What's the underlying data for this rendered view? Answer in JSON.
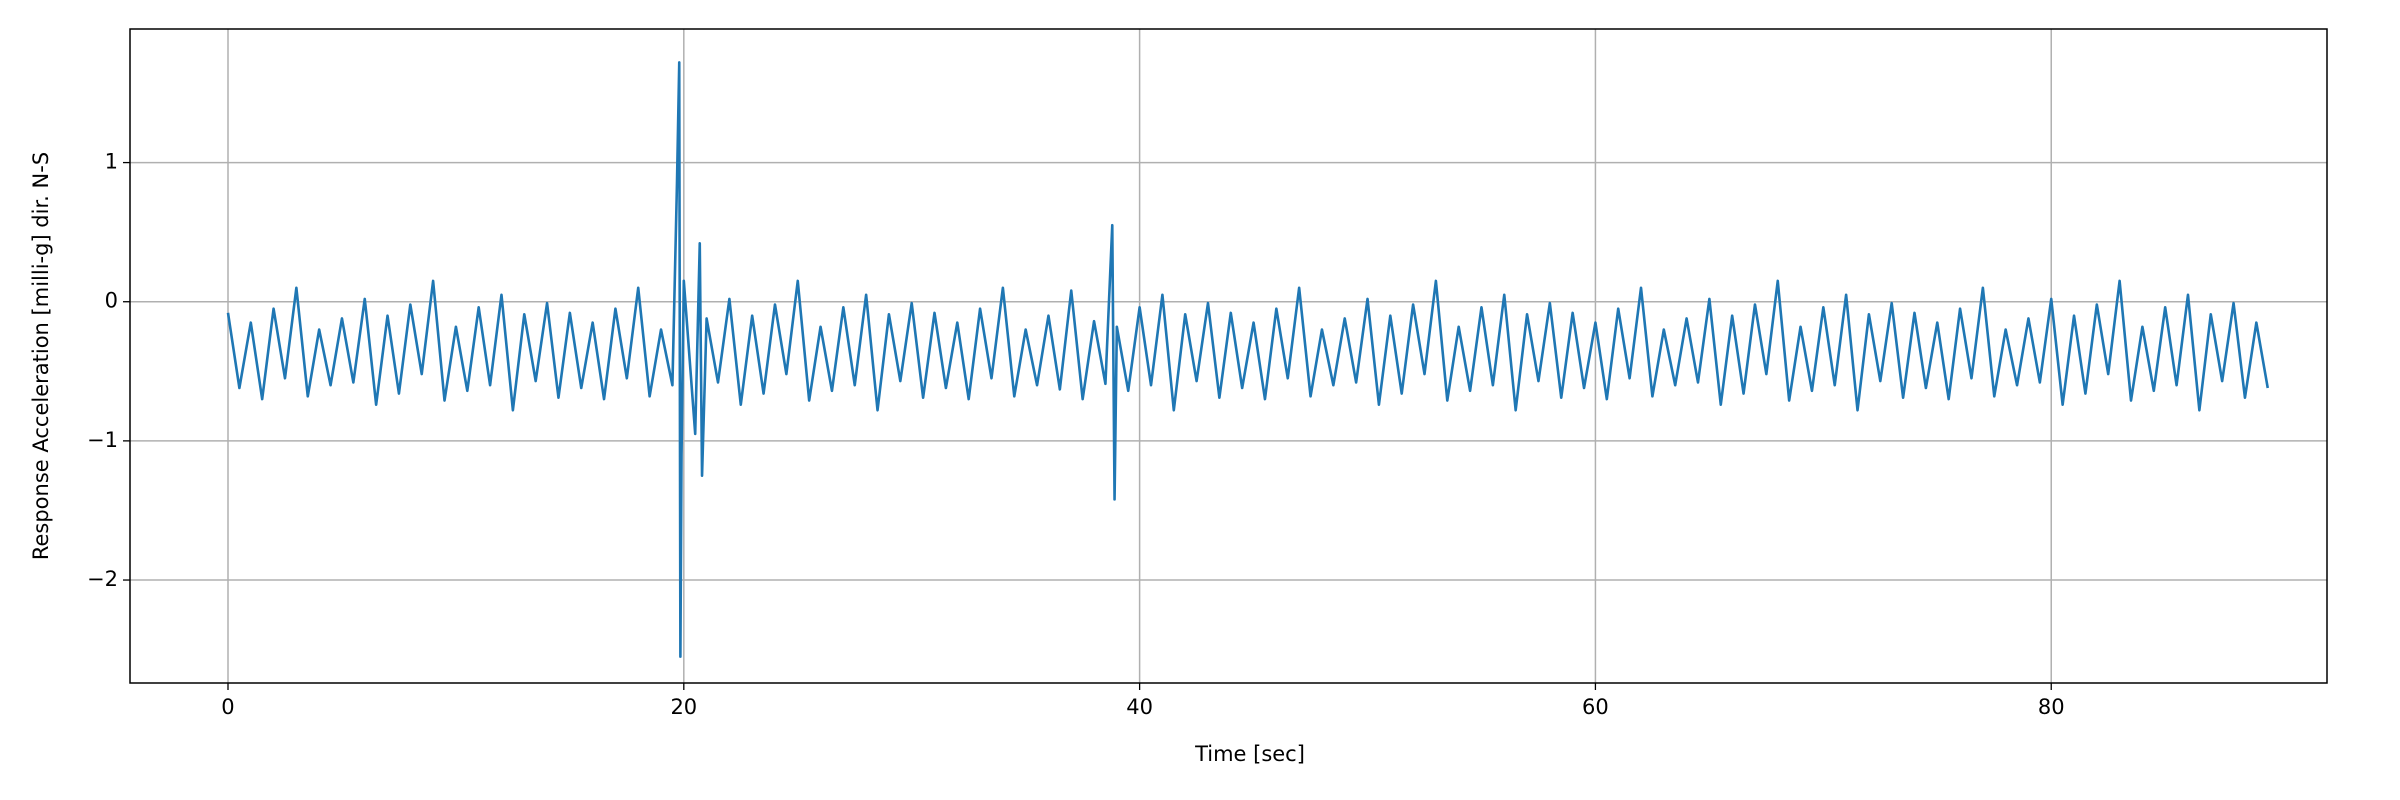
{
  "chart_data": {
    "type": "line",
    "xlabel": "Time [sec]",
    "ylabel": "Response Acceleration [milli-g] dir. N-S",
    "color": "#1f77b4",
    "grid": true,
    "xlim": [
      -4.3,
      92.1
    ],
    "ylim": [
      -2.74,
      1.96
    ],
    "xticks": [
      0,
      20,
      40,
      60,
      80
    ],
    "yticks": [
      {
        "value": -2,
        "label": "−2"
      },
      {
        "value": -1,
        "label": "−1"
      },
      0,
      1
    ],
    "x": [
      0,
      0.5,
      1,
      1.5,
      2,
      2.5,
      3,
      3.5,
      4,
      4.5,
      5,
      5.5,
      6,
      6.5,
      7,
      7.5,
      8,
      8.5,
      9,
      9.5,
      10,
      10.5,
      11,
      11.5,
      12,
      12.5,
      13,
      13.5,
      14,
      14.5,
      15,
      15.5,
      16,
      16.5,
      17,
      17.5,
      18,
      18.5,
      19,
      19.5,
      19.7,
      19.8,
      19.85,
      19.9,
      20,
      20.5,
      20.7,
      20.8,
      21,
      21.5,
      22,
      22.5,
      23,
      23.5,
      24,
      24.5,
      25,
      25.5,
      26,
      26.5,
      27,
      27.5,
      28,
      28.5,
      29,
      29.5,
      30,
      30.5,
      31,
      31.5,
      32,
      32.5,
      33,
      33.5,
      34,
      34.5,
      35,
      35.5,
      36,
      36.5,
      37,
      37.5,
      38,
      38.5,
      38.8,
      38.9,
      39,
      39.5,
      40,
      40.5,
      41,
      41.5,
      42,
      42.5,
      43,
      43.5,
      44,
      44.5,
      45,
      45.5,
      46,
      46.5,
      47,
      47.5,
      48,
      48.5,
      49,
      49.5,
      50,
      50.5,
      51,
      51.5,
      52,
      52.5,
      53,
      53.5,
      54,
      54.5,
      55,
      55.5,
      56,
      56.5,
      57,
      57.5,
      58,
      58.5,
      59,
      59.5,
      60,
      60.5,
      61,
      61.5,
      62,
      62.5,
      63,
      63.5,
      64,
      64.5,
      65,
      65.5,
      66,
      66.5,
      67,
      67.5,
      68,
      68.5,
      69,
      69.5,
      70,
      70.5,
      71,
      71.5,
      72,
      72.5,
      73,
      73.5,
      74,
      74.5,
      75,
      75.5,
      76,
      76.5,
      77,
      77.5,
      78,
      78.5,
      79,
      79.5,
      80,
      80.5,
      81,
      81.5,
      82,
      82.5,
      83,
      83.5,
      84,
      84.5,
      85,
      85.5,
      86,
      86.5,
      87,
      87.5,
      88,
      88.5,
      89,
      89.5
    ],
    "values": [
      -0.08,
      -0.62,
      -0.15,
      -0.7,
      -0.05,
      -0.55,
      0.1,
      -0.68,
      -0.2,
      -0.6,
      -0.12,
      -0.58,
      0.02,
      -0.74,
      -0.1,
      -0.66,
      -0.02,
      -0.52,
      0.15,
      -0.71,
      -0.18,
      -0.64,
      -0.04,
      -0.6,
      0.05,
      -0.78,
      -0.09,
      -0.57,
      -0.01,
      -0.69,
      -0.08,
      -0.62,
      -0.15,
      -0.7,
      -0.05,
      -0.55,
      0.1,
      -0.68,
      -0.2,
      -0.6,
      0.85,
      1.72,
      -2.55,
      -1.1,
      0.15,
      -0.95,
      0.42,
      -1.25,
      -0.12,
      -0.58,
      0.02,
      -0.74,
      -0.1,
      -0.66,
      -0.02,
      -0.52,
      0.15,
      -0.71,
      -0.18,
      -0.64,
      -0.04,
      -0.6,
      0.05,
      -0.78,
      -0.09,
      -0.57,
      -0.01,
      -0.69,
      -0.08,
      -0.62,
      -0.15,
      -0.7,
      -0.05,
      -0.55,
      0.1,
      -0.68,
      -0.2,
      -0.6,
      -0.1,
      -0.63,
      0.08,
      -0.7,
      -0.14,
      -0.59,
      0.55,
      -1.42,
      -0.18,
      -0.64,
      -0.04,
      -0.6,
      0.05,
      -0.78,
      -0.09,
      -0.57,
      -0.01,
      -0.69,
      -0.08,
      -0.62,
      -0.15,
      -0.7,
      -0.05,
      -0.55,
      0.1,
      -0.68,
      -0.2,
      -0.6,
      -0.12,
      -0.58,
      0.02,
      -0.74,
      -0.1,
      -0.66,
      -0.02,
      -0.52,
      0.15,
      -0.71,
      -0.18,
      -0.64,
      -0.04,
      -0.6,
      0.05,
      -0.78,
      -0.09,
      -0.57,
      -0.01,
      -0.69,
      -0.08,
      -0.62,
      -0.15,
      -0.7,
      -0.05,
      -0.55,
      0.1,
      -0.68,
      -0.2,
      -0.6,
      -0.12,
      -0.58,
      0.02,
      -0.74,
      -0.1,
      -0.66,
      -0.02,
      -0.52,
      0.15,
      -0.71,
      -0.18,
      -0.64,
      -0.04,
      -0.6,
      0.05,
      -0.78,
      -0.09,
      -0.57,
      -0.01,
      -0.69,
      -0.08,
      -0.62,
      -0.15,
      -0.7,
      -0.05,
      -0.55,
      0.1,
      -0.68,
      -0.2,
      -0.6,
      -0.12,
      -0.58,
      0.02,
      -0.74,
      -0.1,
      -0.66,
      -0.02,
      -0.52,
      0.15,
      -0.71,
      -0.18,
      -0.64,
      -0.04,
      -0.6,
      0.05,
      -0.78,
      -0.09,
      -0.57,
      -0.01,
      -0.69,
      -0.15,
      -0.62
    ]
  }
}
